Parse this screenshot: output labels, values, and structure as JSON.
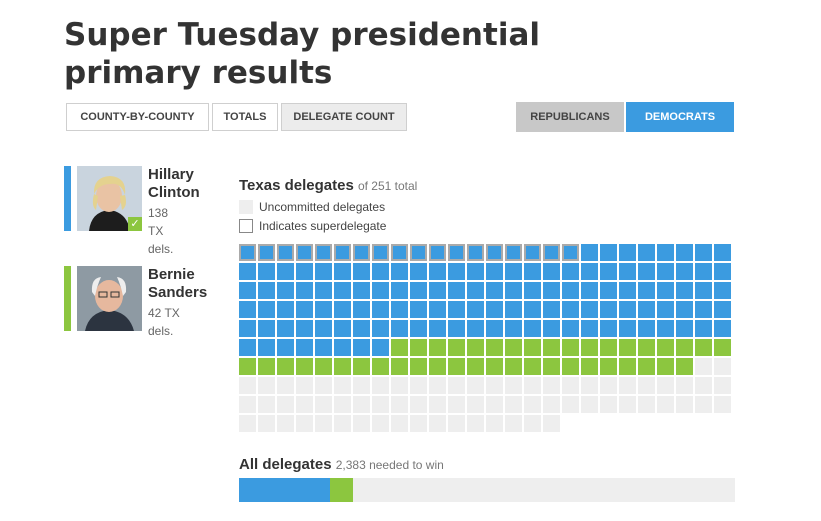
{
  "page": {
    "title": "Super Tuesday presidential primary results"
  },
  "views": {
    "county": "COUNTY-BY-COUNTY",
    "totals": "TOTALS",
    "delegate": "DELEGATE COUNT",
    "active": "delegate"
  },
  "parties": {
    "republicans": "REPUBLICANS",
    "democrats": "DEMOCRATS",
    "active": "democrats"
  },
  "candidates": [
    {
      "first": "Hillary",
      "last": "Clinton",
      "dels": "138",
      "line2": "TX",
      "line3": "dels.",
      "color": "#3b9be0",
      "winner": true
    },
    {
      "first": "Bernie",
      "last": "Sanders",
      "dels": "42 TX",
      "line3": "dels.",
      "color": "#8cc63f",
      "winner": false
    }
  ],
  "state_section": {
    "title": "Texas delegates",
    "subtitle": "of 251 total",
    "legend_uncommitted": "Uncommitted delegates",
    "legend_super": "Indicates superdelegate",
    "columns": 26,
    "total": 251,
    "clinton": 138,
    "sanders": 42,
    "superdelegates_clinton": 18,
    "colors": {
      "clinton": "#3b9be0",
      "sanders": "#8cc63f",
      "uncommitted": "#eeeeee"
    }
  },
  "all_section": {
    "title": "All delegates",
    "subtitle": "2,383 needed to win",
    "total_needed": 2383,
    "clinton_share": 0.184,
    "sanders_share": 0.047
  }
}
